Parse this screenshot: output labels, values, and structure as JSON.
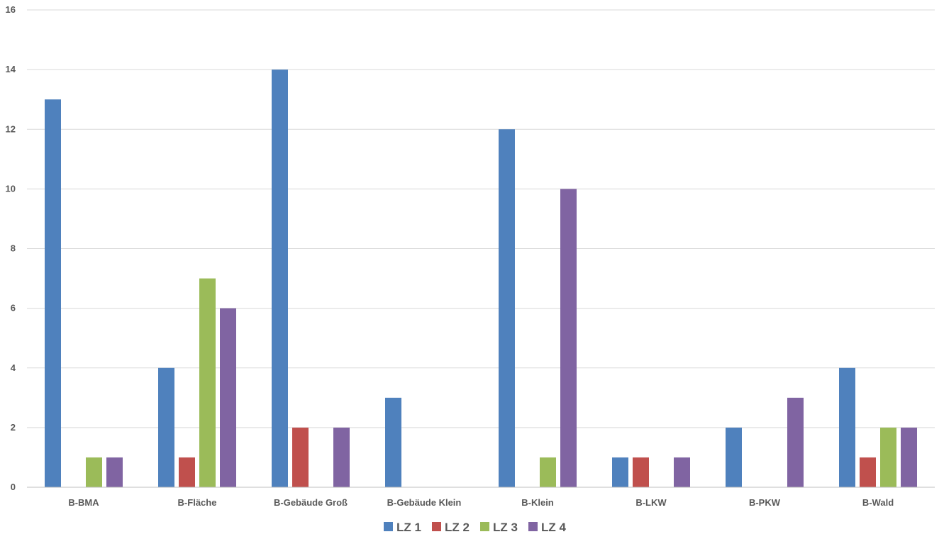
{
  "chart_data": {
    "type": "bar",
    "categories": [
      "B-BMA",
      "B-Fläche",
      "B-Gebäude Groß",
      "B-Gebäude Klein",
      "B-Klein",
      "B-LKW",
      "B-PKW",
      "B-Wald"
    ],
    "series": [
      {
        "name": "LZ 1",
        "color": "#4f81bd",
        "values": [
          13,
          4,
          14,
          3,
          12,
          1,
          2,
          4
        ]
      },
      {
        "name": "LZ 2",
        "color": "#c0504d",
        "values": [
          0,
          1,
          2,
          0,
          0,
          1,
          0,
          1
        ]
      },
      {
        "name": "LZ 3",
        "color": "#9bbb59",
        "values": [
          1,
          7,
          0,
          0,
          1,
          0,
          0,
          2
        ]
      },
      {
        "name": "LZ 4",
        "color": "#8064a2",
        "values": [
          1,
          6,
          2,
          0,
          10,
          1,
          3,
          2
        ]
      }
    ],
    "title": "",
    "xlabel": "",
    "ylabel": "",
    "ylim": [
      0,
      16
    ],
    "yticks": [
      "0",
      "2",
      "4",
      "6",
      "8",
      "10",
      "12",
      "14",
      "16"
    ],
    "grid": true,
    "legend_position": "bottom"
  }
}
